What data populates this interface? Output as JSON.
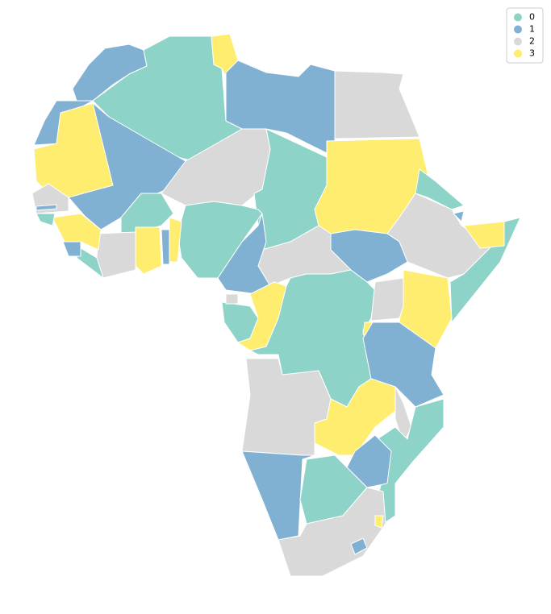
{
  "chart_data": {
    "type": "choropleth",
    "series": [
      {
        "name": "0",
        "color": "#8dd3c7"
      },
      {
        "name": "1",
        "color": "#80b1d3"
      },
      {
        "name": "2",
        "color": "#d9d9d9"
      },
      {
        "name": "3",
        "color": "#ffed6f"
      }
    ],
    "values": [
      1,
      1,
      0,
      3,
      1,
      2,
      3,
      1,
      2,
      0,
      3,
      0,
      2,
      1,
      0,
      3,
      3,
      1,
      2,
      1,
      0,
      3,
      1,
      0,
      3,
      2,
      0,
      3,
      1,
      0,
      2,
      1,
      0,
      2,
      3,
      0,
      2,
      3,
      1,
      2,
      3,
      2,
      0,
      1,
      1,
      0,
      2,
      1,
      3
    ],
    "legend": "upper right"
  }
}
